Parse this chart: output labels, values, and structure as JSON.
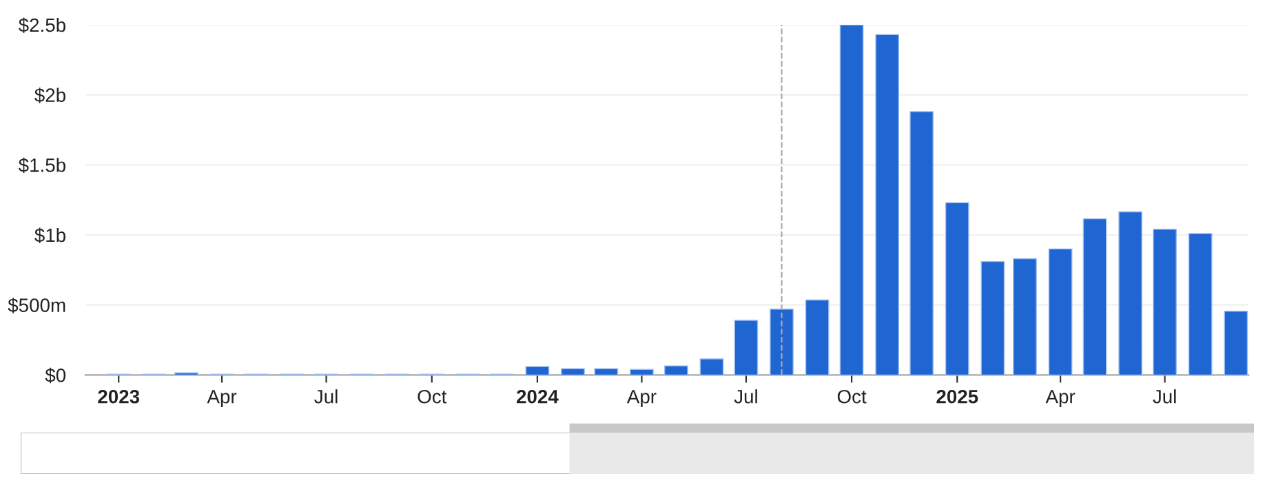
{
  "chart_data": {
    "type": "bar",
    "x": [
      "2023-01",
      "2023-02",
      "2023-03",
      "2023-04",
      "2023-05",
      "2023-06",
      "2023-07",
      "2023-08",
      "2023-09",
      "2023-10",
      "2023-11",
      "2023-12",
      "2024-01",
      "2024-02",
      "2024-03",
      "2024-04",
      "2024-05",
      "2024-06",
      "2024-07",
      "2024-08",
      "2024-09",
      "2024-10",
      "2024-11",
      "2024-12",
      "2025-01",
      "2025-02",
      "2025-03",
      "2025-04",
      "2025-05",
      "2025-06",
      "2025-07",
      "2025-08",
      "2025-09"
    ],
    "series": [
      {
        "color": "#2066d3",
        "values": [
          5000000,
          5000000,
          15000000,
          5000000,
          5000000,
          5000000,
          5000000,
          5000000,
          5000000,
          5000000,
          5000000,
          5000000,
          60000000,
          45000000,
          45000000,
          40000000,
          65000000,
          115000000,
          390000000,
          470000000,
          535000000,
          2500000000,
          2430000000,
          1880000000,
          1230000000,
          810000000,
          830000000,
          900000000,
          1115000000,
          1165000000,
          1040000000,
          1010000000,
          455000000
        ]
      }
    ],
    "xlim": [
      "2022-12-03",
      "2025-09-12"
    ],
    "xticks": [
      {
        "value": "2023-01",
        "label": "2023"
      },
      {
        "value": "2023-04",
        "label": "Apr"
      },
      {
        "value": "2023-07",
        "label": "Jul"
      },
      {
        "value": "2023-10",
        "label": "Oct"
      },
      {
        "value": "2024-01",
        "label": "2024"
      },
      {
        "value": "2024-04",
        "label": "Apr"
      },
      {
        "value": "2024-07",
        "label": "Jul"
      },
      {
        "value": "2024-10",
        "label": "Oct"
      },
      {
        "value": "2025-01",
        "label": "2025"
      },
      {
        "value": "2025-04",
        "label": "Apr"
      },
      {
        "value": "2025-07",
        "label": "Jul"
      }
    ],
    "ylim": [
      0,
      2500000000
    ],
    "yticks": [
      {
        "value": 0,
        "label": "$0"
      },
      {
        "value": 500000000,
        "label": "$500m"
      },
      {
        "value": 1000000000,
        "label": "$1b"
      },
      {
        "value": 1500000000,
        "label": "$1.5b"
      },
      {
        "value": 2000000000,
        "label": "$2b"
      },
      {
        "value": 2500000000,
        "label": "$2.5b"
      }
    ],
    "grid": "y",
    "ref_lines": [
      {
        "axis": "x",
        "value": "2024-08-01",
        "color": "#aaaaaa",
        "line_style": "dashed"
      }
    ]
  }
}
